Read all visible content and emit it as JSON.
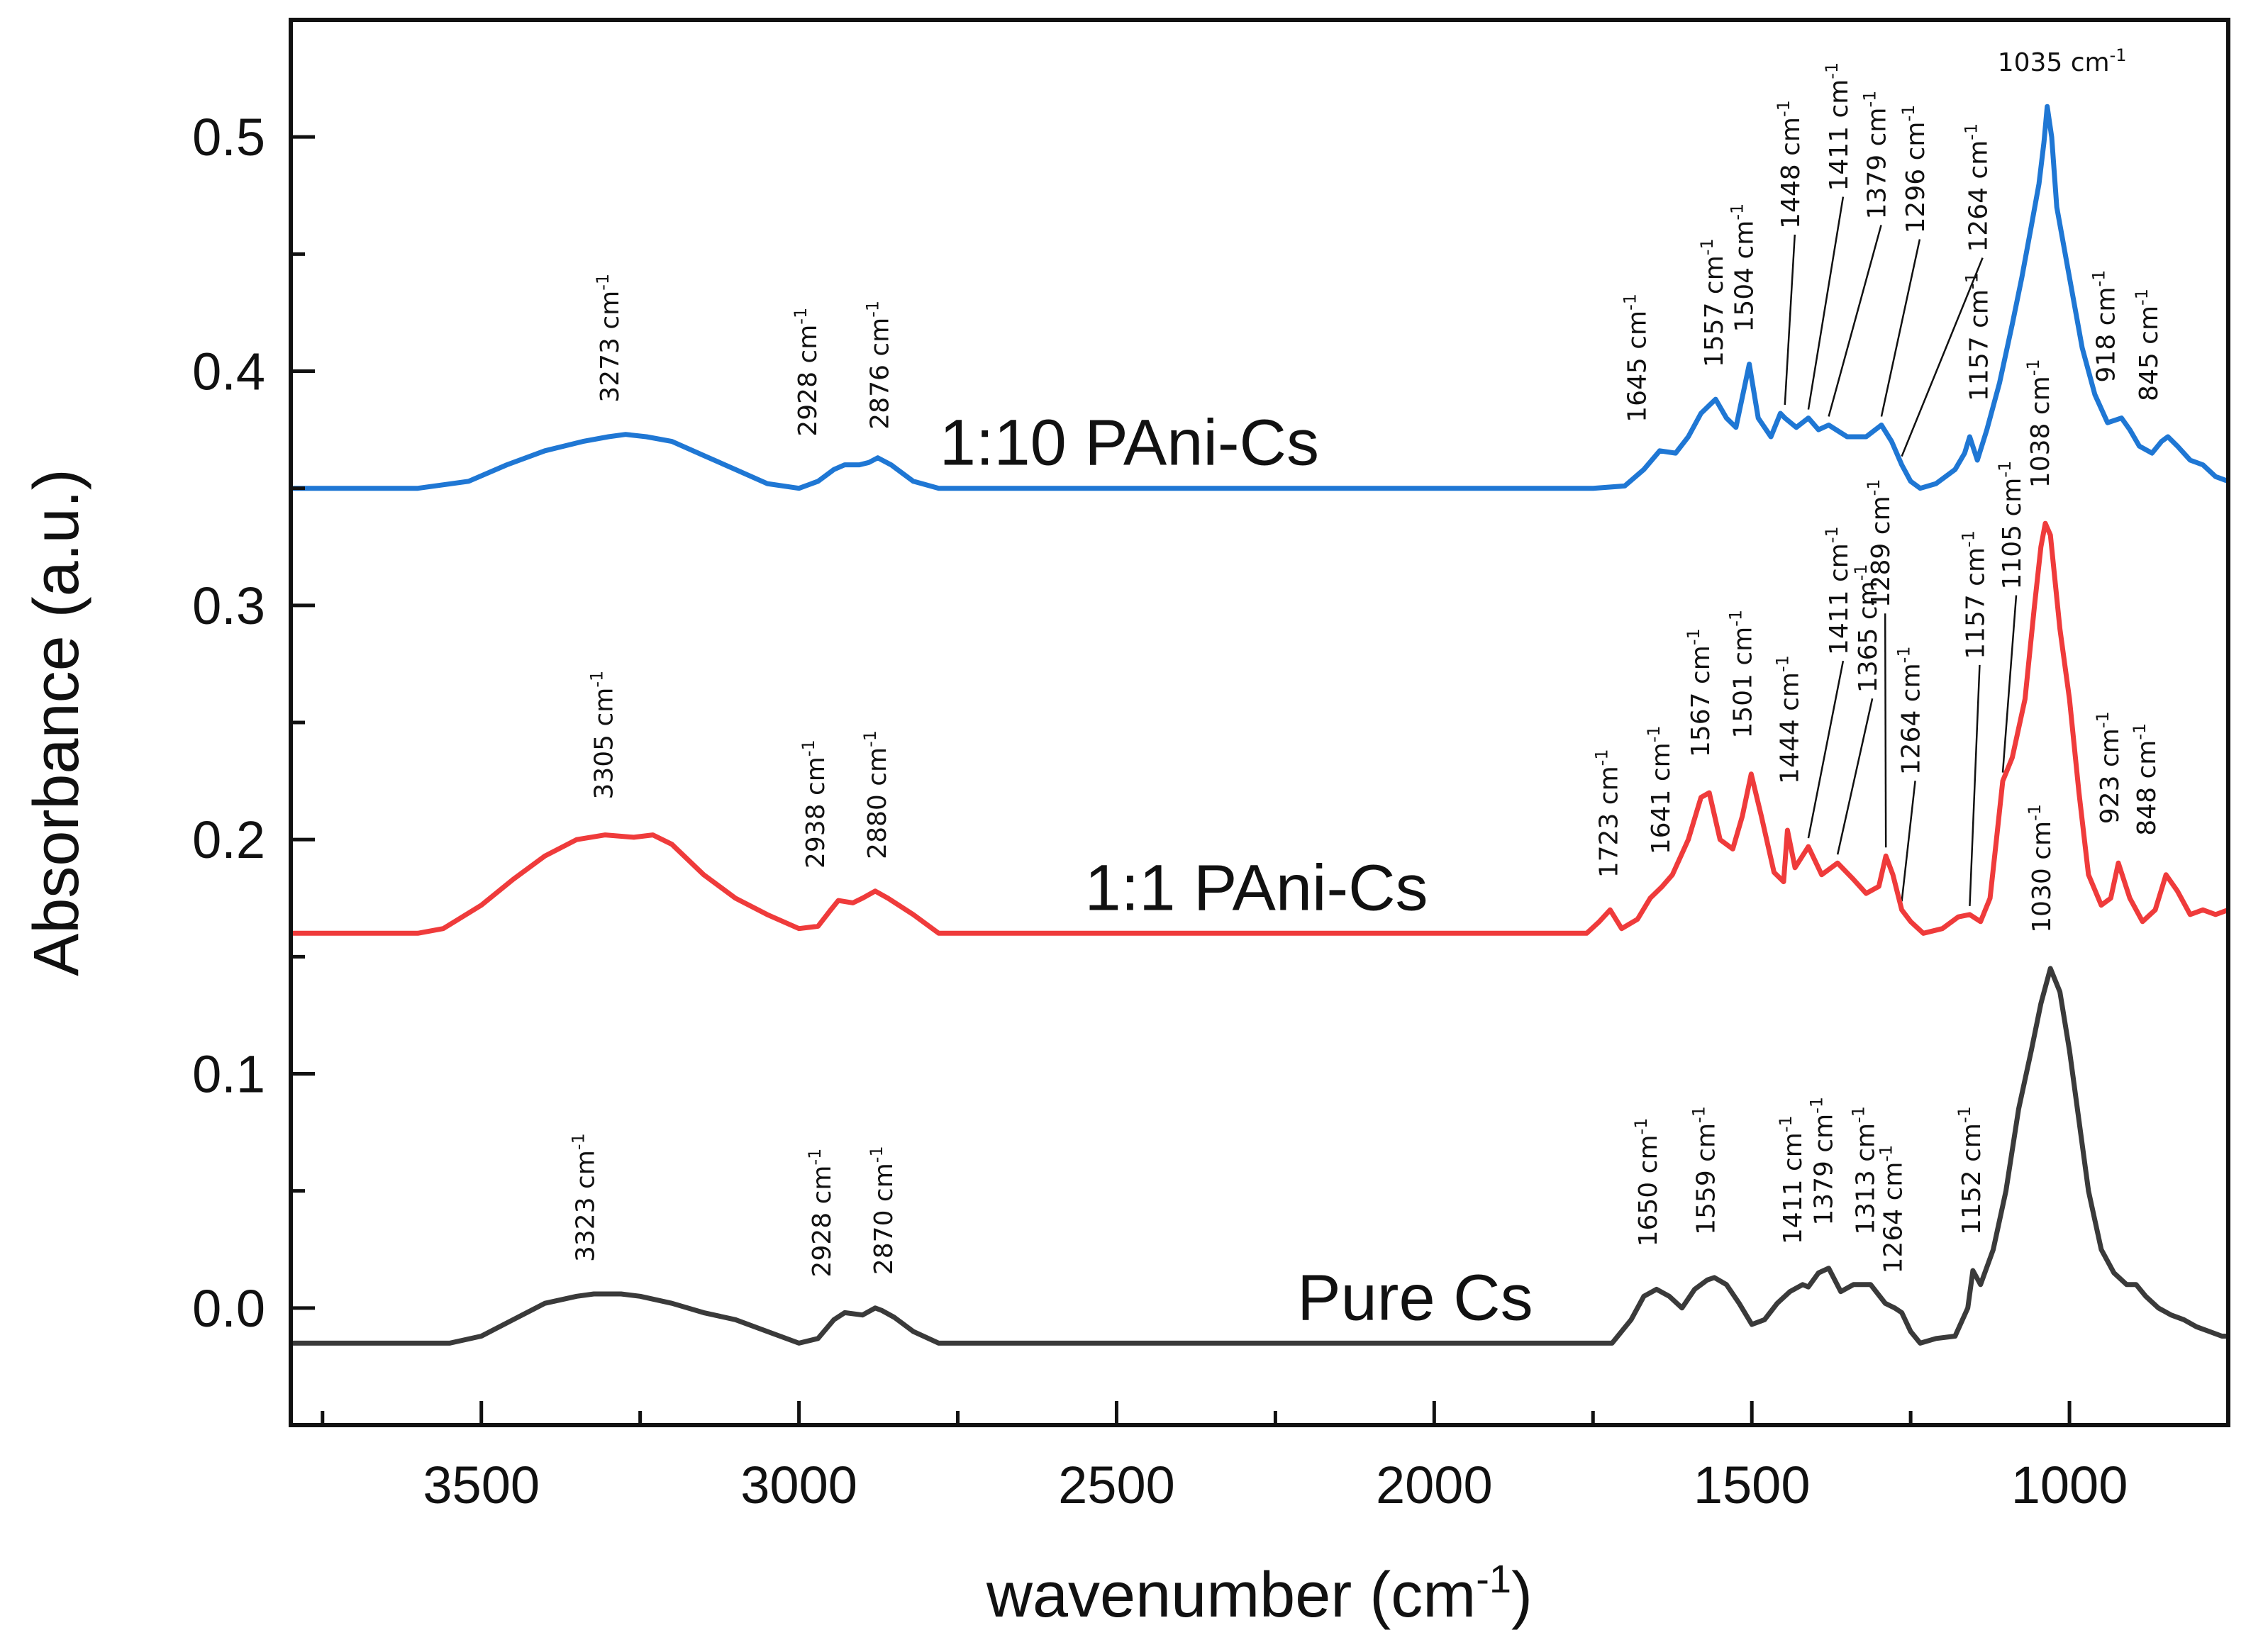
{
  "chart_data": {
    "type": "line",
    "title": "",
    "xlabel": "wavenumber (cm",
    "xlabel_sup": "-1",
    "xlabel_end": ")",
    "ylabel": "Absorbance (a.u.)",
    "xlim": [
      3800,
      750
    ],
    "ylim": [
      -0.05,
      0.55
    ],
    "x_ticks": [
      3500,
      3000,
      2500,
      2000,
      1500,
      1000
    ],
    "x_tick_labels": [
      "3500",
      "3000",
      "2500",
      "2000",
      "1500",
      "1000"
    ],
    "y_ticks": [
      0.0,
      0.1,
      0.2,
      0.3,
      0.4,
      0.5
    ],
    "y_tick_labels": [
      "0.0",
      "0.1",
      "0.2",
      "0.3",
      "0.4",
      "0.5"
    ],
    "unit_suffix": " cm",
    "unit_sup": "-1",
    "series": [
      {
        "name": "1:10 PAni-Cs",
        "color": "#1f77d4",
        "label_pos": [
          2480,
          0.36
        ],
        "x": [
          3800,
          3600,
          3520,
          3460,
          3400,
          3340,
          3300,
          3273,
          3240,
          3200,
          3150,
          3100,
          3050,
          3000,
          2970,
          2945,
          2928,
          2905,
          2890,
          2876,
          2855,
          2820,
          2780,
          2500,
          2000,
          1750,
          1700,
          1670,
          1645,
          1620,
          1600,
          1580,
          1557,
          1540,
          1525,
          1504,
          1490,
          1470,
          1455,
          1448,
          1430,
          1411,
          1395,
          1379,
          1350,
          1320,
          1296,
          1280,
          1264,
          1250,
          1235,
          1210,
          1180,
          1165,
          1157,
          1145,
          1130,
          1110,
          1090,
          1075,
          1060,
          1048,
          1040,
          1035,
          1028,
          1020,
          1000,
          980,
          960,
          940,
          918,
          905,
          890,
          870,
          855,
          845,
          830,
          810,
          790,
          770,
          750
        ],
        "y": [
          0.35,
          0.35,
          0.353,
          0.36,
          0.366,
          0.37,
          0.372,
          0.373,
          0.372,
          0.37,
          0.364,
          0.358,
          0.352,
          0.35,
          0.353,
          0.358,
          0.36,
          0.36,
          0.361,
          0.363,
          0.36,
          0.353,
          0.35,
          0.35,
          0.35,
          0.35,
          0.351,
          0.358,
          0.366,
          0.365,
          0.372,
          0.382,
          0.388,
          0.38,
          0.376,
          0.403,
          0.38,
          0.372,
          0.382,
          0.38,
          0.376,
          0.38,
          0.375,
          0.377,
          0.372,
          0.372,
          0.377,
          0.37,
          0.36,
          0.353,
          0.35,
          0.352,
          0.358,
          0.365,
          0.372,
          0.362,
          0.375,
          0.395,
          0.42,
          0.44,
          0.462,
          0.48,
          0.498,
          0.513,
          0.5,
          0.47,
          0.44,
          0.41,
          0.39,
          0.378,
          0.38,
          0.375,
          0.368,
          0.365,
          0.37,
          0.372,
          0.368,
          0.362,
          0.36,
          0.355,
          0.353
        ],
        "peaks": [
          {
            "label": "3273",
            "wn": 3273,
            "val": 0.373,
            "x_off": -10,
            "y_off": -45,
            "vertical": true
          },
          {
            "label": "2928",
            "wn": 2928,
            "val": 0.36,
            "x_off": -40,
            "y_off": -40,
            "vertical": true
          },
          {
            "label": "2876",
            "wn": 2876,
            "val": 0.363,
            "x_off": 15,
            "y_off": -40,
            "vertical": true
          },
          {
            "label": "1645",
            "wn": 1645,
            "val": 0.366,
            "x_off": -20,
            "y_off": -40,
            "vertical": true
          },
          {
            "label": "1557",
            "wn": 1557,
            "val": 0.388,
            "x_off": 10,
            "y_off": -45,
            "vertical": true
          },
          {
            "label": "1504",
            "wn": 1504,
            "val": 0.403,
            "x_off": 5,
            "y_off": -45,
            "vertical": true
          },
          {
            "label": "1448",
            "wn": 1448,
            "val": 0.382,
            "x_off": 20,
            "y_off": -260,
            "vertical": true
          },
          {
            "label": "1411",
            "wn": 1411,
            "val": 0.38,
            "x_off": 55,
            "y_off": -320,
            "vertical": true
          },
          {
            "label": "1379",
            "wn": 1379,
            "val": 0.377,
            "x_off": 80,
            "y_off": -290,
            "vertical": true
          },
          {
            "label": "1296",
            "wn": 1296,
            "val": 0.377,
            "x_off": 60,
            "y_off": -270,
            "vertical": true
          },
          {
            "label": "1264",
            "wn": 1264,
            "val": 0.36,
            "x_off": 120,
            "y_off": -300,
            "vertical": true
          },
          {
            "label": "1157",
            "wn": 1157,
            "val": 0.372,
            "x_off": 25,
            "y_off": -50,
            "vertical": true
          },
          {
            "label": "1035",
            "wn": 1035,
            "val": 0.513,
            "x_off": 50,
            "y_off": -50,
            "vertical": false
          },
          {
            "label": "918",
            "wn": 918,
            "val": 0.38,
            "x_off": -10,
            "y_off": -50,
            "vertical": true
          },
          {
            "label": "845",
            "wn": 845,
            "val": 0.372,
            "x_off": -15,
            "y_off": -50,
            "vertical": true
          }
        ]
      },
      {
        "name": "1:1 PAni-Cs",
        "color": "#ef3b3b",
        "label_pos": [
          2280,
          0.17
        ],
        "x": [
          3800,
          3600,
          3560,
          3500,
          3450,
          3400,
          3350,
          3305,
          3260,
          3230,
          3200,
          3150,
          3100,
          3050,
          3000,
          2970,
          2950,
          2938,
          2915,
          2900,
          2880,
          2860,
          2820,
          2780,
          2500,
          2000,
          1760,
          1740,
          1723,
          1705,
          1680,
          1660,
          1641,
          1625,
          1600,
          1580,
          1567,
          1550,
          1530,
          1515,
          1501,
          1485,
          1465,
          1450,
          1444,
          1432,
          1411,
          1390,
          1365,
          1340,
          1320,
          1300,
          1289,
          1278,
          1264,
          1250,
          1230,
          1200,
          1175,
          1157,
          1140,
          1125,
          1115,
          1105,
          1090,
          1070,
          1055,
          1045,
          1038,
          1030,
          1015,
          1000,
          985,
          970,
          950,
          935,
          923,
          905,
          885,
          865,
          848,
          830,
          810,
          790,
          770,
          750
        ],
        "y": [
          0.16,
          0.16,
          0.162,
          0.172,
          0.183,
          0.193,
          0.2,
          0.202,
          0.201,
          0.202,
          0.198,
          0.185,
          0.175,
          0.168,
          0.162,
          0.163,
          0.17,
          0.174,
          0.173,
          0.175,
          0.178,
          0.175,
          0.168,
          0.16,
          0.16,
          0.16,
          0.16,
          0.165,
          0.17,
          0.162,
          0.166,
          0.175,
          0.18,
          0.185,
          0.2,
          0.218,
          0.22,
          0.2,
          0.196,
          0.21,
          0.228,
          0.21,
          0.186,
          0.182,
          0.204,
          0.188,
          0.197,
          0.185,
          0.19,
          0.183,
          0.177,
          0.18,
          0.193,
          0.185,
          0.17,
          0.165,
          0.16,
          0.162,
          0.167,
          0.168,
          0.165,
          0.175,
          0.2,
          0.225,
          0.235,
          0.26,
          0.3,
          0.325,
          0.335,
          0.33,
          0.29,
          0.26,
          0.22,
          0.185,
          0.172,
          0.175,
          0.19,
          0.175,
          0.165,
          0.17,
          0.185,
          0.178,
          0.168,
          0.17,
          0.168,
          0.17
        ],
        "peaks": [
          {
            "label": "3305",
            "wn": 3305,
            "val": 0.202,
            "x_off": 10,
            "y_off": -50,
            "vertical": true
          },
          {
            "label": "2938",
            "wn": 2938,
            "val": 0.174,
            "x_off": -20,
            "y_off": -45,
            "vertical": true
          },
          {
            "label": "2880",
            "wn": 2880,
            "val": 0.178,
            "x_off": 15,
            "y_off": -45,
            "vertical": true
          },
          {
            "label": "1723",
            "wn": 1723,
            "val": 0.17,
            "x_off": 10,
            "y_off": -45,
            "vertical": true
          },
          {
            "label": "1641",
            "wn": 1641,
            "val": 0.18,
            "x_off": 10,
            "y_off": -45,
            "vertical": true
          },
          {
            "label": "1567",
            "wn": 1567,
            "val": 0.22,
            "x_off": 0,
            "y_off": -50,
            "vertical": true
          },
          {
            "label": "1501",
            "wn": 1501,
            "val": 0.228,
            "x_off": 0,
            "y_off": -50,
            "vertical": true
          },
          {
            "label": "1444",
            "wn": 1444,
            "val": 0.204,
            "x_off": 15,
            "y_off": -65,
            "vertical": true
          },
          {
            "label": "1411",
            "wn": 1411,
            "val": 0.197,
            "x_off": 55,
            "y_off": -270,
            "vertical": true
          },
          {
            "label": "1365",
            "wn": 1365,
            "val": 0.19,
            "x_off": 55,
            "y_off": -240,
            "vertical": true
          },
          {
            "label": "1289",
            "wn": 1289,
            "val": 0.193,
            "x_off": 5,
            "y_off": -350,
            "vertical": true
          },
          {
            "label": "1264",
            "wn": 1264,
            "val": 0.17,
            "x_off": 25,
            "y_off": -190,
            "vertical": true
          },
          {
            "label": "1157",
            "wn": 1157,
            "val": 0.168,
            "x_off": 20,
            "y_off": -360,
            "vertical": true
          },
          {
            "label": "1105",
            "wn": 1105,
            "val": 0.225,
            "x_off": 25,
            "y_off": -270,
            "vertical": true
          },
          {
            "label": "1038",
            "wn": 1038,
            "val": 0.335,
            "x_off": 5,
            "y_off": -50,
            "vertical": true
          },
          {
            "label": "923",
            "wn": 923,
            "val": 0.19,
            "x_off": 0,
            "y_off": -55,
            "vertical": true
          },
          {
            "label": "848",
            "wn": 848,
            "val": 0.185,
            "x_off": -15,
            "y_off": -55,
            "vertical": true
          }
        ]
      },
      {
        "name": "Pure Cs",
        "color": "#3a3a3a",
        "label_pos": [
          2030,
          -0.005
        ],
        "x": [
          3800,
          3550,
          3500,
          3450,
          3400,
          3350,
          3323,
          3280,
          3250,
          3200,
          3150,
          3100,
          3050,
          3000,
          2970,
          2945,
          2928,
          2900,
          2880,
          2870,
          2850,
          2820,
          2780,
          2500,
          2000,
          1720,
          1690,
          1670,
          1650,
          1630,
          1610,
          1590,
          1570,
          1559,
          1540,
          1520,
          1500,
          1480,
          1460,
          1440,
          1420,
          1411,
          1395,
          1379,
          1360,
          1340,
          1313,
          1290,
          1275,
          1264,
          1250,
          1235,
          1210,
          1180,
          1160,
          1152,
          1140,
          1120,
          1100,
          1080,
          1060,
          1045,
          1030,
          1015,
          1000,
          985,
          970,
          950,
          930,
          910,
          895,
          880,
          860,
          840,
          820,
          800,
          780,
          760,
          750
        ],
        "y": [
          -0.015,
          -0.015,
          -0.012,
          -0.005,
          0.002,
          0.005,
          0.006,
          0.006,
          0.005,
          0.002,
          -0.002,
          -0.005,
          -0.01,
          -0.015,
          -0.013,
          -0.005,
          -0.002,
          -0.003,
          0.0,
          -0.001,
          -0.004,
          -0.01,
          -0.015,
          -0.015,
          -0.015,
          -0.015,
          -0.005,
          0.005,
          0.008,
          0.005,
          0.0,
          0.008,
          0.012,
          0.013,
          0.01,
          0.002,
          -0.007,
          -0.005,
          0.002,
          0.007,
          0.01,
          0.009,
          0.015,
          0.017,
          0.007,
          0.01,
          0.01,
          0.002,
          0.0,
          -0.002,
          -0.01,
          -0.015,
          -0.013,
          -0.012,
          0.0,
          0.016,
          0.01,
          0.025,
          0.05,
          0.085,
          0.11,
          0.13,
          0.145,
          0.135,
          0.11,
          0.08,
          0.05,
          0.025,
          0.015,
          0.01,
          0.01,
          0.005,
          0.0,
          -0.003,
          -0.005,
          -0.008,
          -0.01,
          -0.012,
          -0.012
        ],
        "peaks": [
          {
            "label": "3323",
            "wn": 3323,
            "val": 0.006,
            "x_off": 0,
            "y_off": -45,
            "vertical": true
          },
          {
            "label": "2928",
            "wn": 2928,
            "val": -0.002,
            "x_off": -20,
            "y_off": -50,
            "vertical": true
          },
          {
            "label": "2870",
            "wn": 2870,
            "val": -0.001,
            "x_off": 15,
            "y_off": -50,
            "vertical": true
          },
          {
            "label": "1650",
            "wn": 1650,
            "val": 0.008,
            "x_off": 0,
            "y_off": -60,
            "vertical": true
          },
          {
            "label": "1559",
            "wn": 1559,
            "val": 0.013,
            "x_off": 0,
            "y_off": -60,
            "vertical": true
          },
          {
            "label": "1411",
            "wn": 1411,
            "val": 0.009,
            "x_off": -10,
            "y_off": -60,
            "vertical": true
          },
          {
            "label": "1379",
            "wn": 1379,
            "val": 0.017,
            "x_off": 5,
            "y_off": -60,
            "vertical": true
          },
          {
            "label": "1313",
            "wn": 1313,
            "val": 0.01,
            "x_off": 5,
            "y_off": -70,
            "vertical": true
          },
          {
            "label": "1264",
            "wn": 1264,
            "val": -0.002,
            "x_off": 0,
            "y_off": -55,
            "vertical": true
          },
          {
            "label": "1152",
            "wn": 1152,
            "val": 0.016,
            "x_off": 10,
            "y_off": -50,
            "vertical": true
          },
          {
            "label": "1030",
            "wn": 1030,
            "val": 0.145,
            "x_off": 0,
            "y_off": -50,
            "vertical": true
          }
        ]
      }
    ]
  }
}
